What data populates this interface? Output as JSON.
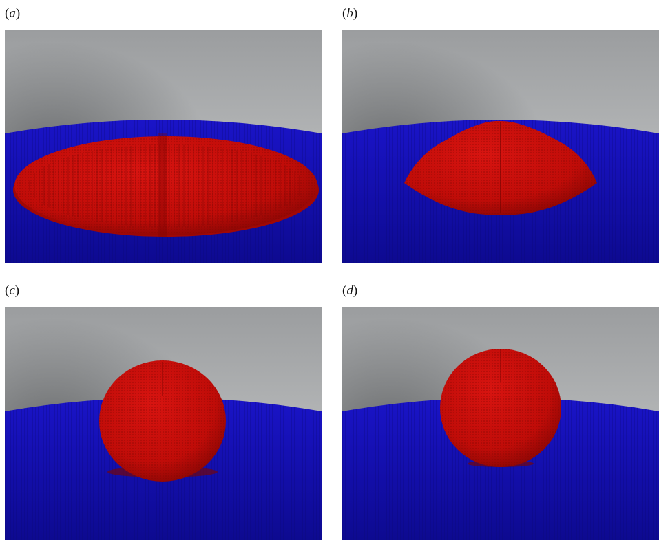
{
  "figure": {
    "panels": [
      {
        "id": "a",
        "label_open": "(",
        "label_letter": "a",
        "label_close": ")",
        "shape": "flat-spread-disk"
      },
      {
        "id": "b",
        "label_open": "(",
        "label_letter": "b",
        "label_close": ")",
        "shape": "spherical-cap"
      },
      {
        "id": "c",
        "label_open": "(",
        "label_letter": "c",
        "label_close": ")",
        "shape": "near-sphere"
      },
      {
        "id": "d",
        "label_open": "(",
        "label_letter": "d",
        "label_close": ")",
        "shape": "sphere-detaching"
      }
    ],
    "colors": {
      "droplet": "#c80d0a",
      "droplet_dark": "#8e0604",
      "substrate": "#1510b8",
      "substrate_dark": "#0a0780",
      "background_light": "#b4b6b7",
      "background_dark": "#6f7173"
    }
  }
}
